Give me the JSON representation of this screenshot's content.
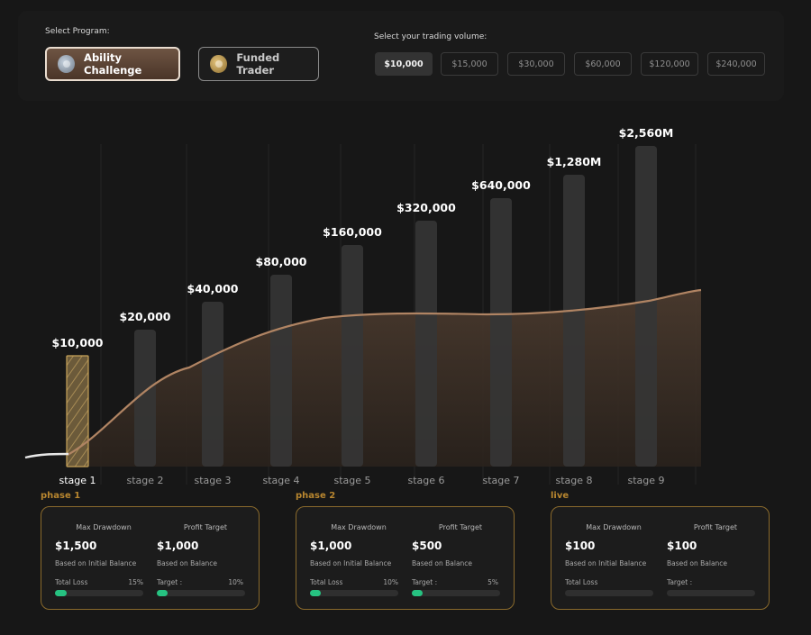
{
  "program": {
    "label": "Select Program:",
    "options": [
      {
        "name": "Ability Challenge",
        "active": true,
        "icon": "silver-coin-icon"
      },
      {
        "name": "Funded Trader",
        "active": false,
        "icon": "gold-coin-icon"
      }
    ]
  },
  "volume": {
    "label": "Select your trading volume:",
    "options": [
      "$10,000",
      "$15,000",
      "$30,000",
      "$60,000",
      "$120,000",
      "$240,000"
    ],
    "selected": "$10,000"
  },
  "chart_data": {
    "type": "bar",
    "categories": [
      "stage 1",
      "stage 2",
      "stage 3",
      "stage 4",
      "stage 5",
      "stage 6",
      "stage 7",
      "stage 8",
      "stage 9"
    ],
    "value_labels": [
      "$10,000",
      "$20,000",
      "$40,000",
      "$80,000",
      "$160,000",
      "$320,000",
      "$640,000",
      "$1,280M",
      "$2,560M"
    ],
    "values": [
      10000,
      20000,
      40000,
      80000,
      160000,
      320000,
      640000,
      1280000,
      2560000
    ],
    "active_stage": "stage 1",
    "colors": {
      "bar": "#353535",
      "curve": "#b08463",
      "active": "#c9a45a",
      "label": "#ffffff"
    }
  },
  "phases": [
    {
      "label": "phase 1",
      "max_drawdown": {
        "title": "Max Drawdown",
        "amount": "$1,500",
        "basis": "Based on Initial Balance",
        "progress_label": "Total Loss",
        "progress_value": "15%",
        "fill": 0.15
      },
      "profit_target": {
        "title": "Profit Target",
        "amount": "$1,000",
        "basis": "Based on Balance",
        "progress_label": "Target :",
        "progress_value": "10%",
        "fill": 0.1
      }
    },
    {
      "label": "phase 2",
      "max_drawdown": {
        "title": "Max Drawdown",
        "amount": "$1,000",
        "basis": "Based on Initial Balance",
        "progress_label": "Total Loss",
        "progress_value": "10%",
        "fill": 0.1
      },
      "profit_target": {
        "title": "Profit Target",
        "amount": "$500",
        "basis": "Based on Balance",
        "progress_label": "Target :",
        "progress_value": "5%",
        "fill": 0.05
      }
    },
    {
      "label": "live",
      "max_drawdown": {
        "title": "Max Drawdown",
        "amount": "$100",
        "basis": "Based on Initial Balance",
        "progress_label": "Total Loss",
        "progress_value": "",
        "fill": 0
      },
      "profit_target": {
        "title": "Profit Target",
        "amount": "$100",
        "basis": "Based on Balance",
        "progress_label": "Target :",
        "progress_value": "",
        "fill": 0
      }
    }
  ],
  "colors": {
    "accent_gold": "#b8862f",
    "progress_green": "#26c281"
  }
}
